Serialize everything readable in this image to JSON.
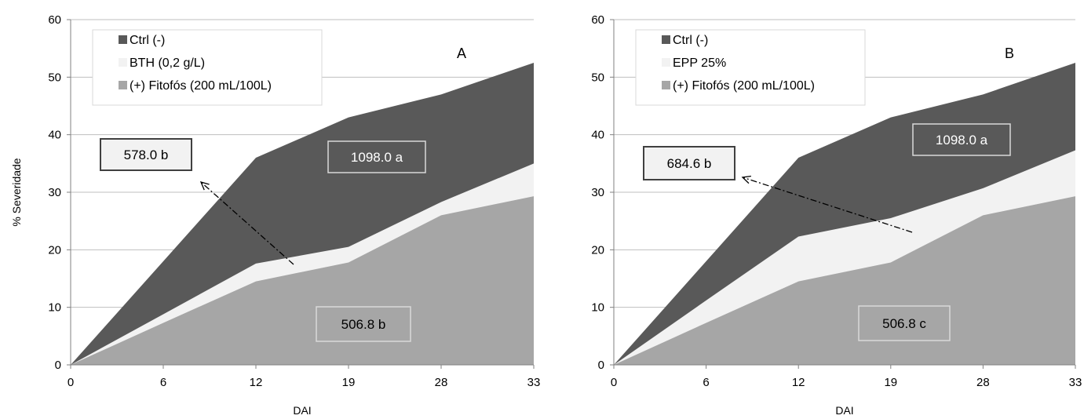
{
  "chart_data": [
    {
      "type": "area",
      "panel_label": "A",
      "x": [
        0,
        6,
        12,
        19,
        28,
        33
      ],
      "xlabel": "DAI",
      "ylabel": "% Severidade",
      "ylim": [
        0,
        60
      ],
      "yticks": [
        0,
        10,
        20,
        30,
        40,
        50,
        60
      ],
      "grid": true,
      "legend_position": "top-left",
      "series": [
        {
          "name": "Ctrl (-)",
          "color": "#595959",
          "values": [
            0,
            18,
            36,
            43,
            47,
            52.5
          ]
        },
        {
          "name": "BTH (0,2 g/L)",
          "color": "#f2f2f2",
          "values": [
            0,
            8.8,
            17.6,
            20.5,
            28.3,
            35
          ]
        },
        {
          "name": "(+) Fitofós (200 mL/100L)",
          "color": "#a6a6a6",
          "values": [
            0,
            7.3,
            14.5,
            17.8,
            26,
            29.3
          ]
        }
      ],
      "annotations": [
        "1098.0 a",
        "578.0 b",
        "506.8 b"
      ]
    },
    {
      "type": "area",
      "panel_label": "B",
      "x": [
        0,
        6,
        12,
        19,
        28,
        33
      ],
      "xlabel": "DAI",
      "ylabel": "",
      "ylim": [
        0,
        60
      ],
      "yticks": [
        0,
        10,
        20,
        30,
        40,
        50,
        60
      ],
      "grid": true,
      "legend_position": "top-left",
      "series": [
        {
          "name": "Ctrl (-)",
          "color": "#595959",
          "values": [
            0,
            18,
            36,
            43,
            47,
            52.5
          ]
        },
        {
          "name": "EPP 25%",
          "color": "#f2f2f2",
          "values": [
            0,
            11.2,
            22.3,
            25.5,
            30.7,
            37.3
          ]
        },
        {
          "name": "(+) Fitofós (200 mL/100L)",
          "color": "#a6a6a6",
          "values": [
            0,
            7.3,
            14.5,
            17.8,
            26,
            29.3
          ]
        }
      ],
      "annotations": [
        "1098.0 a",
        "684.6 b",
        "506.8 c"
      ]
    }
  ]
}
